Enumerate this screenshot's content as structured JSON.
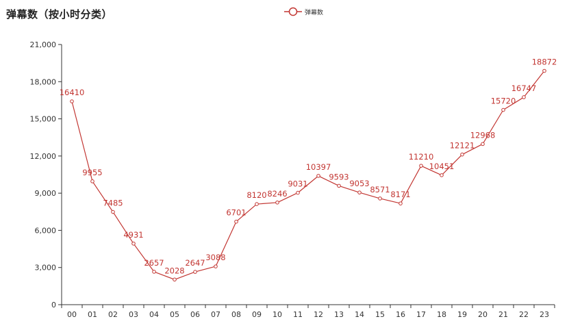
{
  "chart_data": {
    "type": "line",
    "title": "弹幕数（按小时分类）",
    "categories": [
      "00",
      "01",
      "02",
      "03",
      "04",
      "05",
      "06",
      "07",
      "08",
      "09",
      "10",
      "11",
      "12",
      "13",
      "14",
      "15",
      "16",
      "17",
      "18",
      "19",
      "20",
      "21",
      "22",
      "23"
    ],
    "series": [
      {
        "name": "弹幕数",
        "values": [
          16410,
          9955,
          7485,
          4931,
          2657,
          2028,
          2647,
          3088,
          6701,
          8120,
          8246,
          9031,
          10397,
          9593,
          9053,
          8571,
          8171,
          11210,
          10451,
          12121,
          12968,
          15720,
          16747,
          18872
        ]
      }
    ],
    "y_ticks": [
      "0",
      "3,000",
      "6,000",
      "9,000",
      "12,000",
      "15,000",
      "18,000",
      "21,000"
    ],
    "ylim": [
      0,
      21000
    ],
    "grid": false,
    "legend_position": "top-center",
    "color": "#c23531",
    "axis_color": "#333333"
  }
}
